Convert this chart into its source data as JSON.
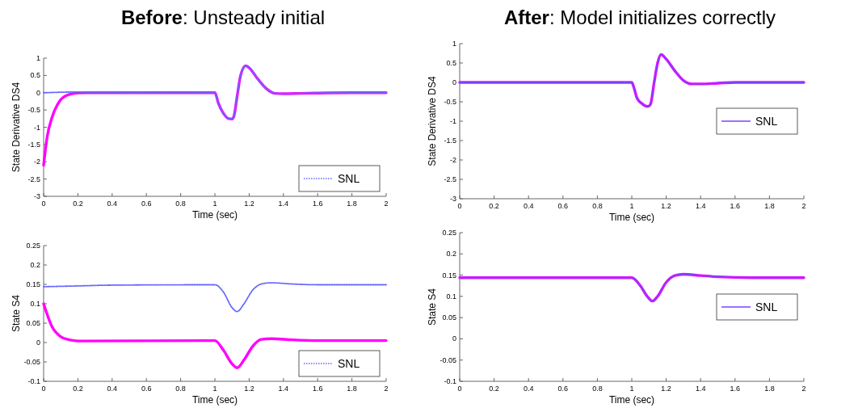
{
  "chart_data": [
    {
      "type": "line",
      "title": "Before: Unsteady initial",
      "xlabel": "Time (sec)",
      "ylabel": "State Derivative DS4",
      "xlim": [
        0,
        2
      ],
      "xticks": [
        0,
        0.2,
        0.4,
        0.6,
        0.8,
        1,
        1.2,
        1.4,
        1.6,
        1.8,
        2
      ],
      "ylim": [
        -3,
        1
      ],
      "yticks": [
        -3,
        -2.5,
        -2,
        -1.5,
        -1,
        -0.5,
        0,
        0.5,
        1
      ],
      "legend": "bottom right",
      "series": [
        {
          "color": "#ff00ff",
          "line_style": "solid",
          "x": [
            0,
            0.02,
            0.05,
            0.08,
            0.1,
            0.15,
            0.2,
            0.25,
            1,
            1.02,
            1.05,
            1.08,
            1.1,
            1.11,
            1.13,
            1.15,
            1.18,
            1.2,
            1.25,
            1.3,
            1.35,
            1.4,
            1.5,
            1.6,
            1.8,
            2
          ],
          "values": [
            -2.1,
            -1.3,
            -0.7,
            -0.35,
            -0.2,
            -0.05,
            -0.01,
            0,
            0,
            -0.3,
            -0.6,
            -0.75,
            -0.76,
            -0.7,
            -0.1,
            0.5,
            0.78,
            0.72,
            0.4,
            0.12,
            -0.02,
            -0.03,
            -0.02,
            -0.01,
            0,
            0
          ]
        },
        {
          "name": "SNL",
          "color": "#6666ff",
          "line_style": "dotted",
          "x": [
            0,
            0.2,
            0.3,
            1,
            1.02,
            1.05,
            1.08,
            1.1,
            1.11,
            1.13,
            1.15,
            1.18,
            1.2,
            1.25,
            1.3,
            1.35,
            1.4,
            1.5,
            1.6,
            1.8,
            2
          ],
          "values": [
            0,
            0.02,
            0.01,
            0,
            -0.3,
            -0.6,
            -0.75,
            -0.76,
            -0.7,
            -0.1,
            0.5,
            0.78,
            0.72,
            0.4,
            0.12,
            -0.02,
            -0.03,
            -0.02,
            -0.01,
            0,
            0
          ]
        }
      ]
    },
    {
      "type": "line",
      "title": "After: Model initializes correctly",
      "xlabel": "Time (sec)",
      "ylabel": "State Derivative DS4",
      "xlim": [
        0,
        2
      ],
      "xticks": [
        0,
        0.2,
        0.4,
        0.6,
        0.8,
        1,
        1.2,
        1.4,
        1.6,
        1.8,
        2
      ],
      "ylim": [
        -3,
        1
      ],
      "yticks": [
        -3,
        -2.5,
        -2,
        -1.5,
        -1,
        -0.5,
        0,
        0.5,
        1
      ],
      "legend": "right",
      "series": [
        {
          "color": "#ff00ff",
          "line_style": "solid",
          "x": [
            0,
            1,
            1.01,
            1.03,
            1.06,
            1.09,
            1.1,
            1.11,
            1.13,
            1.15,
            1.17,
            1.2,
            1.25,
            1.3,
            1.35,
            1.4,
            1.5,
            1.6,
            2
          ],
          "values": [
            0,
            0,
            -0.1,
            -0.4,
            -0.55,
            -0.62,
            -0.61,
            -0.55,
            0,
            0.5,
            0.72,
            0.6,
            0.3,
            0.05,
            -0.04,
            -0.04,
            -0.02,
            0,
            0
          ]
        },
        {
          "name": "SNL",
          "color": "#7f3fff",
          "line_style": "solid",
          "x": [
            0,
            1,
            1.01,
            1.03,
            1.06,
            1.09,
            1.1,
            1.11,
            1.13,
            1.15,
            1.17,
            1.2,
            1.25,
            1.3,
            1.35,
            1.4,
            1.5,
            1.6,
            2
          ],
          "values": [
            0,
            0,
            -0.1,
            -0.4,
            -0.55,
            -0.62,
            -0.61,
            -0.55,
            0,
            0.5,
            0.72,
            0.6,
            0.3,
            0.05,
            -0.04,
            -0.04,
            -0.02,
            0,
            0
          ]
        }
      ]
    },
    {
      "type": "line",
      "xlabel": "Time (sec)",
      "ylabel": "State S4",
      "xlim": [
        0,
        2
      ],
      "xticks": [
        0,
        0.2,
        0.4,
        0.6,
        0.8,
        1,
        1.2,
        1.4,
        1.6,
        1.8,
        2
      ],
      "ylim": [
        -0.1,
        0.25
      ],
      "yticks": [
        -0.1,
        -0.05,
        0,
        0.05,
        0.1,
        0.15,
        0.2,
        0.25
      ],
      "legend": "bottom right",
      "series": [
        {
          "color": "#ff00ff",
          "line_style": "solid",
          "x": [
            0,
            0.05,
            0.1,
            0.15,
            0.2,
            1,
            1.05,
            1.1,
            1.13,
            1.17,
            1.22,
            1.27,
            1.33,
            1.45,
            1.6,
            2
          ],
          "values": [
            0.1,
            0.04,
            0.015,
            0.007,
            0.004,
            0.005,
            -0.02,
            -0.055,
            -0.065,
            -0.045,
            -0.01,
            0.008,
            0.01,
            0.007,
            0.005,
            0.005
          ]
        },
        {
          "name": "SNL",
          "color": "#6666ff",
          "line_style": "dotted",
          "x": [
            0,
            0.2,
            0.4,
            1,
            1.05,
            1.1,
            1.13,
            1.17,
            1.22,
            1.28,
            1.33,
            1.45,
            1.6,
            2
          ],
          "values": [
            0.144,
            0.146,
            0.148,
            0.149,
            0.13,
            0.09,
            0.08,
            0.1,
            0.135,
            0.152,
            0.154,
            0.151,
            0.149,
            0.149
          ]
        }
      ]
    },
    {
      "type": "line",
      "xlabel": "Time (sec)",
      "ylabel": "State S4",
      "xlim": [
        0,
        2
      ],
      "xticks": [
        0,
        0.2,
        0.4,
        0.6,
        0.8,
        1,
        1.2,
        1.4,
        1.6,
        1.8,
        2
      ],
      "ylim": [
        -0.1,
        0.25
      ],
      "yticks": [
        -0.1,
        -0.05,
        0,
        0.05,
        0.1,
        0.15,
        0.2,
        0.25
      ],
      "legend": "right",
      "series": [
        {
          "color": "#ff00ff",
          "line_style": "solid",
          "x": [
            0,
            1,
            1.05,
            1.09,
            1.12,
            1.15,
            1.2,
            1.25,
            1.3,
            1.4,
            1.5,
            1.7,
            2
          ],
          "values": [
            0.144,
            0.144,
            0.125,
            0.1,
            0.089,
            0.1,
            0.133,
            0.149,
            0.152,
            0.149,
            0.146,
            0.144,
            0.144
          ]
        },
        {
          "name": "SNL",
          "color": "#7f3fff",
          "line_style": "solid",
          "x": [
            0,
            1,
            1.05,
            1.09,
            1.12,
            1.15,
            1.2,
            1.25,
            1.3,
            1.4,
            1.5,
            1.7,
            2
          ],
          "values": [
            0.144,
            0.144,
            0.125,
            0.1,
            0.089,
            0.1,
            0.133,
            0.149,
            0.152,
            0.149,
            0.146,
            0.144,
            0.144
          ]
        }
      ]
    }
  ]
}
